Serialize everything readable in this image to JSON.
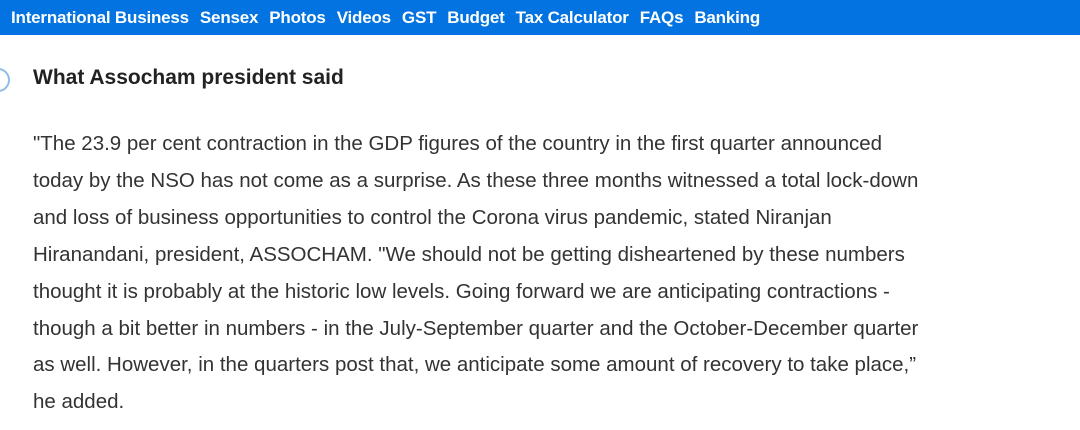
{
  "nav": {
    "items": [
      "International Business",
      "Sensex",
      "Photos",
      "Videos",
      "GST",
      "Budget",
      "Tax Calculator",
      "FAQs",
      "Banking"
    ],
    "background_color": "#0273e0"
  },
  "article": {
    "heading": "What Assocham president said",
    "paragraph_lines": [
      "\"The 23.9 per cent contraction in the GDP figures of the country in the first quarter announced",
      "today by the NSO has not come as a surprise. As these three months witnessed a total lock-down",
      "and loss of business opportunities to control the Corona virus pandemic, stated Niranjan",
      "Hiranandani, president, ASSOCHAM. \"We should not be getting disheartened by these numbers",
      "thought it is probably at the historic low levels. Going forward we are anticipating contractions -",
      "though a bit better in numbers - in the July-September quarter and the October-December quarter",
      "as well. However, in the quarters post that, we anticipate some amount of recovery to take place,”",
      "he added."
    ]
  }
}
